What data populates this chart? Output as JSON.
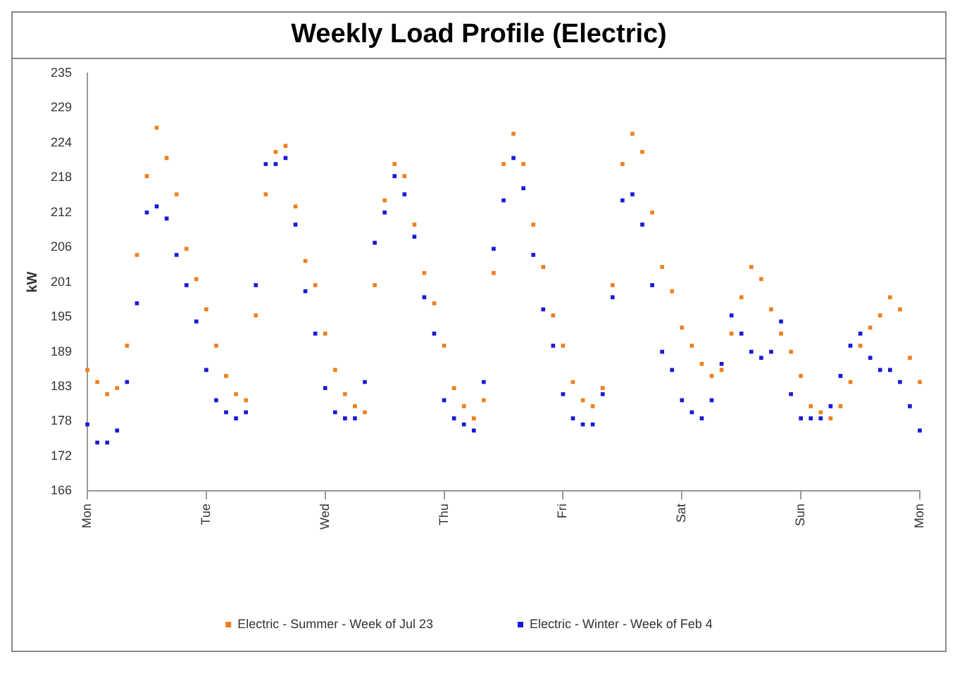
{
  "chart_data": {
    "type": "scatter",
    "title": "Weekly Load Profile (Electric)",
    "ylabel": "kW",
    "categories": [
      "Mon",
      null,
      null,
      null,
      null,
      null,
      null,
      null,
      null,
      null,
      null,
      null,
      "Tue",
      null,
      null,
      null,
      null,
      null,
      null,
      null,
      null,
      null,
      null,
      null,
      "Wed",
      null,
      null,
      null,
      null,
      null,
      null,
      null,
      null,
      null,
      null,
      null,
      "Thu",
      null,
      null,
      null,
      null,
      null,
      null,
      null,
      null,
      null,
      null,
      null,
      "Fri",
      null,
      null,
      null,
      null,
      null,
      null,
      null,
      null,
      null,
      null,
      null,
      "Sat",
      null,
      null,
      null,
      null,
      null,
      null,
      null,
      null,
      null,
      null,
      null,
      "Sun",
      null,
      null,
      null,
      null,
      null,
      null,
      null,
      null,
      null,
      null,
      null,
      "Mon"
    ],
    "ylim": [
      166,
      235
    ],
    "yticks": [
      166,
      {
        "value": 171.75,
        "label": "172"
      },
      {
        "value": 177.5,
        "label": "178"
      },
      {
        "value": 183.25,
        "label": "183"
      },
      189,
      {
        "value": 194.75,
        "label": "195"
      },
      {
        "value": 200.5,
        "label": "201"
      },
      {
        "value": 206.25,
        "label": "206"
      },
      212,
      {
        "value": 217.75,
        "label": "218"
      },
      {
        "value": 223.5,
        "label": "224"
      },
      {
        "value": 229.25,
        "label": "229"
      },
      235
    ],
    "grid": false,
    "legend": "bottom",
    "marker": "square",
    "series": [
      {
        "name": "Electric - Summer - Week of Jul 23",
        "color": "#f07f1e",
        "values": [
          186,
          184,
          182,
          183,
          190,
          205,
          218,
          226,
          221,
          215,
          206,
          201,
          196,
          190,
          185,
          182,
          181,
          195,
          215,
          222,
          223,
          213,
          204,
          200,
          192,
          186,
          182,
          180,
          179,
          200,
          214,
          220,
          218,
          210,
          202,
          197,
          190,
          183,
          180,
          178,
          181,
          202,
          220,
          225,
          220,
          210,
          203,
          195,
          190,
          184,
          181,
          180,
          183,
          200,
          220,
          225,
          222,
          212,
          203,
          199,
          193,
          190,
          187,
          185,
          186,
          192,
          198,
          203,
          201,
          196,
          192,
          189,
          185,
          180,
          179,
          178,
          180,
          184,
          190,
          193,
          195,
          198,
          196,
          188,
          184
        ]
      },
      {
        "name": "Electric - Winter - Week of Feb 4",
        "color": "#1a1ad6",
        "values": [
          177,
          174,
          174,
          176,
          184,
          197,
          212,
          213,
          211,
          205,
          200,
          194,
          186,
          181,
          179,
          178,
          179,
          200,
          220,
          220,
          221,
          210,
          199,
          192,
          183,
          179,
          178,
          178,
          184,
          207,
          212,
          218,
          215,
          208,
          198,
          192,
          181,
          178,
          177,
          176,
          184,
          206,
          214,
          221,
          216,
          205,
          196,
          190,
          182,
          178,
          177,
          177,
          182,
          198,
          214,
          215,
          210,
          200,
          189,
          186,
          181,
          179,
          178,
          181,
          187,
          195,
          192,
          189,
          188,
          189,
          194,
          182,
          178,
          178,
          178,
          180,
          185,
          190,
          192,
          188,
          186,
          186,
          184,
          180,
          176
        ]
      }
    ]
  }
}
